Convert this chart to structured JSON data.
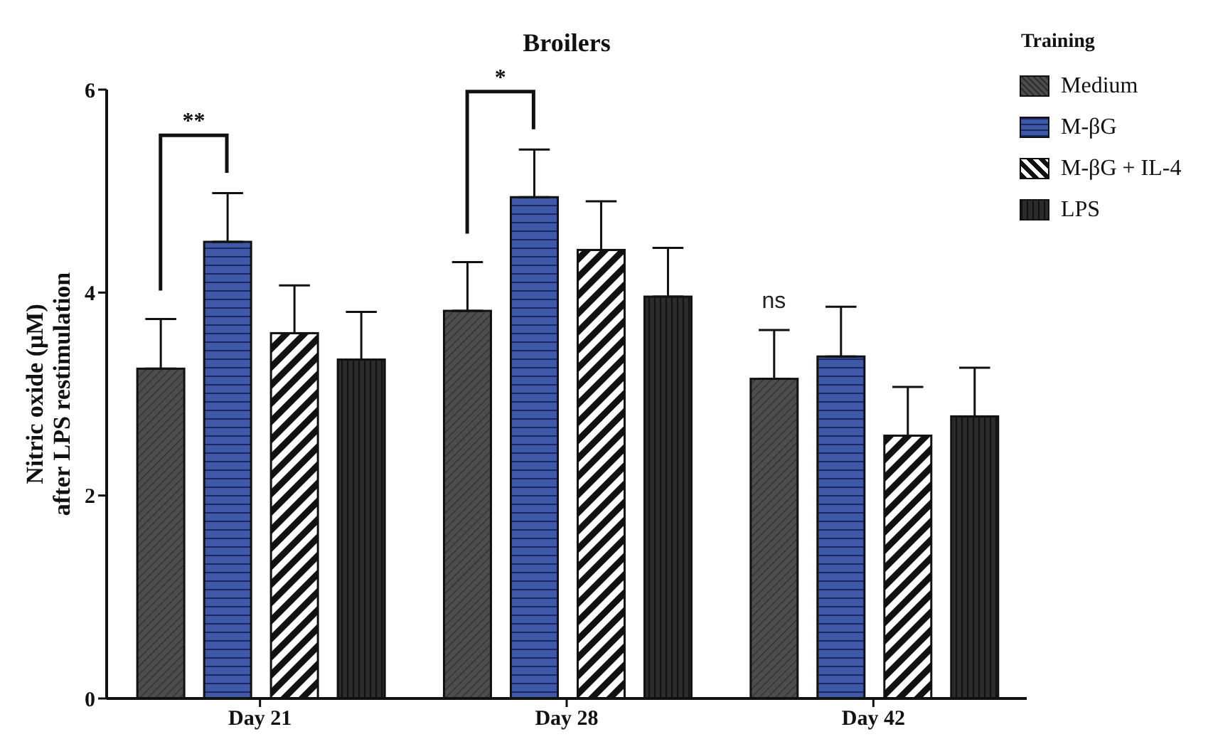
{
  "chart_data": {
    "type": "bar",
    "title": "Broilers",
    "ylabel": "Nitric oxide (μM)\nafter LPS restimulation",
    "legend_title": "Training",
    "legend": "top right",
    "categories": [
      "Day 21",
      "Day 28",
      "Day 42"
    ],
    "series": [
      {
        "name": "Medium",
        "color": "#4d4d4d",
        "values": [
          3.25,
          3.82,
          3.15
        ],
        "errors": [
          [
            3.25,
            3.74
          ],
          [
            3.82,
            4.3
          ],
          [
            3.15,
            3.63
          ]
        ]
      },
      {
        "name": "M-βG",
        "color": "#4058a8",
        "values": [
          4.5,
          4.94,
          3.37
        ],
        "errors": [
          [
            4.5,
            4.98
          ],
          [
            4.94,
            5.41
          ],
          [
            3.37,
            3.86
          ]
        ]
      },
      {
        "name": "M-βG + IL-4",
        "color": "#ffffff",
        "values": [
          3.6,
          4.42,
          2.59
        ],
        "errors": [
          [
            3.6,
            4.07
          ],
          [
            4.42,
            4.9
          ],
          [
            2.59,
            3.07
          ]
        ]
      },
      {
        "name": "LPS",
        "color": "#2b2b2b",
        "values": [
          3.34,
          3.96,
          2.78
        ],
        "errors": [
          [
            3.34,
            3.81
          ],
          [
            3.96,
            4.44
          ],
          [
            2.78,
            3.26
          ]
        ]
      }
    ],
    "ylim": [
      0,
      6
    ],
    "yticks": [
      0,
      2,
      4,
      6
    ],
    "grid": false,
    "annotations": [
      "**",
      "*",
      "ns"
    ]
  }
}
